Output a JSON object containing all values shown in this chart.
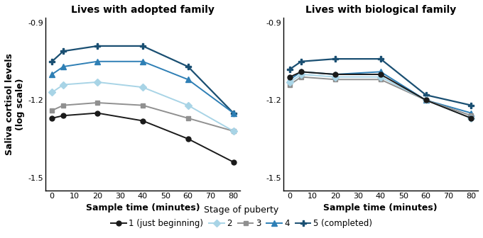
{
  "x": [
    0,
    5,
    20,
    40,
    60,
    80
  ],
  "title_left": "Lives with adopted family",
  "title_right": "Lives with biological family",
  "xlabel": "Sample time (minutes)",
  "ylabel": "Saliva cortisol levels\n(log scale)",
  "ylim": [
    -1.55,
    -0.88
  ],
  "yticks": [
    -1.5,
    -1.2,
    -0.9
  ],
  "xticks": [
    0,
    10,
    20,
    30,
    40,
    50,
    60,
    70,
    80
  ],
  "legend_title": "Stage of puberty",
  "stages": [
    "1 (just beginning)",
    "2",
    "3",
    "4",
    "5 (completed)"
  ],
  "colors": [
    "#1a1a1a",
    "#a8d4e6",
    "#909090",
    "#2e7fb5",
    "#1a4f72"
  ],
  "markers": [
    "o",
    "D",
    "s",
    "^",
    "P"
  ],
  "marker_sizes": [
    5,
    5,
    5,
    6,
    6
  ],
  "linewidths": [
    1.4,
    1.4,
    1.4,
    1.4,
    1.6
  ],
  "adopted": [
    [
      -1.27,
      -1.26,
      -1.25,
      -1.28,
      -1.35,
      -1.44
    ],
    [
      -1.17,
      -1.14,
      -1.13,
      -1.15,
      -1.22,
      -1.32
    ],
    [
      -1.24,
      -1.22,
      -1.21,
      -1.22,
      -1.27,
      -1.32
    ],
    [
      -1.1,
      -1.07,
      -1.05,
      -1.05,
      -1.12,
      -1.25
    ],
    [
      -1.05,
      -1.01,
      -0.99,
      -0.99,
      -1.07,
      -1.25
    ]
  ],
  "biological": [
    [
      -1.11,
      -1.09,
      -1.1,
      -1.1,
      -1.2,
      -1.27
    ],
    [
      -1.13,
      -1.1,
      -1.11,
      -1.11,
      -1.2,
      -1.27
    ],
    [
      -1.14,
      -1.11,
      -1.12,
      -1.12,
      -1.2,
      -1.26
    ],
    [
      -1.12,
      -1.09,
      -1.1,
      -1.09,
      -1.2,
      -1.25
    ],
    [
      -1.08,
      -1.05,
      -1.04,
      -1.04,
      -1.18,
      -1.22
    ]
  ]
}
